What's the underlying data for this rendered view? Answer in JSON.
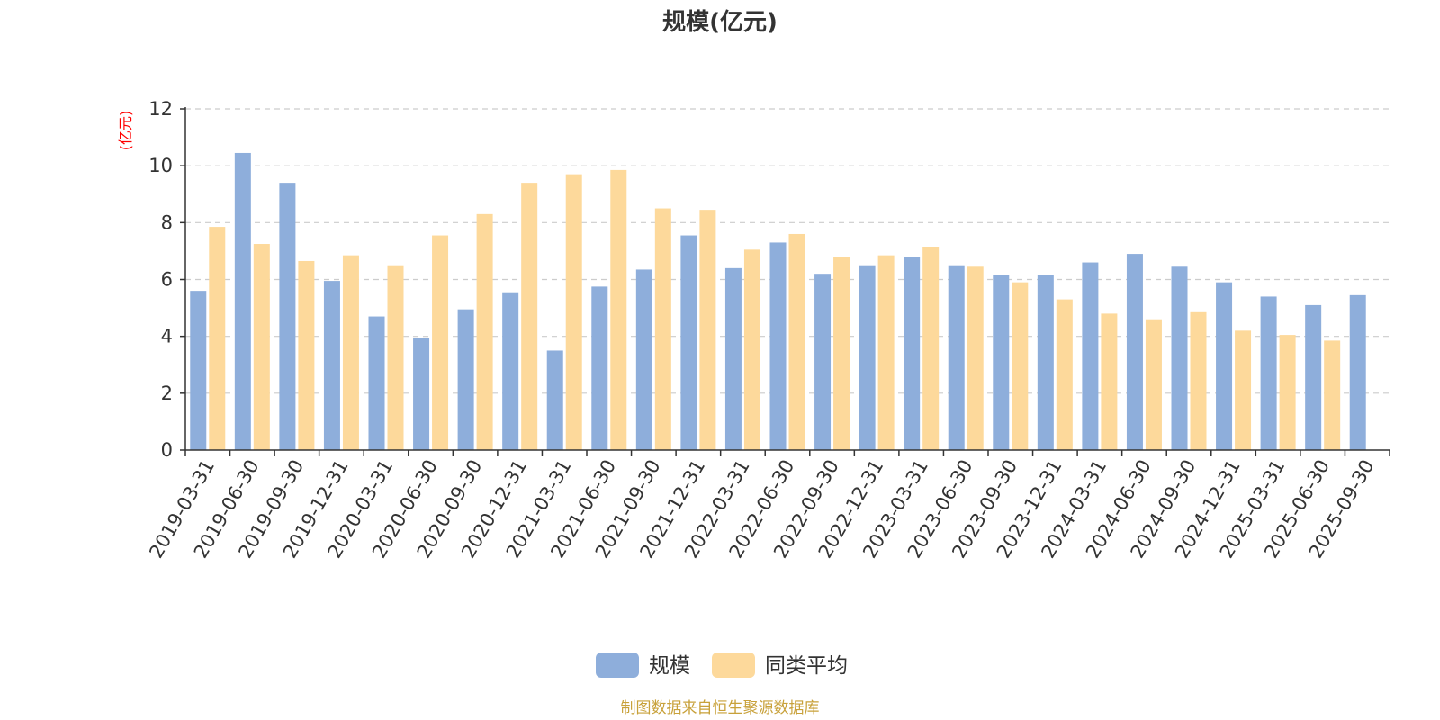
{
  "chart_data": {
    "type": "bar",
    "title": "规模(亿元)",
    "ylabel": "(亿元)",
    "xlabel": "",
    "ylim": [
      0,
      12
    ],
    "yticks": [
      0,
      2,
      4,
      6,
      8,
      10,
      12
    ],
    "grid": true,
    "legend_position": "bottom-center",
    "categories": [
      "2019-03-31",
      "2019-06-30",
      "2019-09-30",
      "2019-12-31",
      "2020-03-31",
      "2020-06-30",
      "2020-09-30",
      "2020-12-31",
      "2021-03-31",
      "2021-06-30",
      "2021-09-30",
      "2021-12-31",
      "2022-03-31",
      "2022-06-30",
      "2022-09-30",
      "2022-12-31",
      "2023-03-31",
      "2023-06-30",
      "2023-09-30",
      "2023-12-31",
      "2024-03-31",
      "2024-06-30",
      "2024-09-30",
      "2024-12-31",
      "2025-03-31",
      "2025-06-30",
      "2025-09-30"
    ],
    "series": [
      {
        "name": "规模",
        "color": "#8eaedb",
        "values": [
          5.6,
          10.45,
          9.4,
          5.95,
          4.7,
          3.95,
          4.95,
          5.55,
          3.5,
          5.75,
          6.35,
          7.55,
          6.4,
          7.3,
          6.2,
          6.5,
          6.8,
          6.5,
          6.15,
          6.15,
          6.6,
          6.9,
          6.45,
          5.9,
          5.4,
          5.1,
          5.45
        ]
      },
      {
        "name": "同类平均",
        "color": "#fdd99b",
        "values": [
          7.85,
          7.25,
          6.65,
          6.85,
          6.5,
          7.55,
          8.3,
          9.4,
          9.7,
          9.85,
          8.5,
          8.45,
          7.05,
          7.6,
          6.8,
          6.85,
          7.15,
          6.45,
          5.9,
          5.3,
          4.8,
          4.6,
          4.85,
          4.2,
          4.05,
          3.85,
          null
        ]
      }
    ]
  },
  "colors": {
    "axis": "#333333",
    "grid": "#cccccc",
    "tick_text": "#333333",
    "ylabel": "#ff0000",
    "title": "#333333",
    "source": "#c8a13a"
  },
  "source_text": "制图数据来自恒生聚源数据库"
}
